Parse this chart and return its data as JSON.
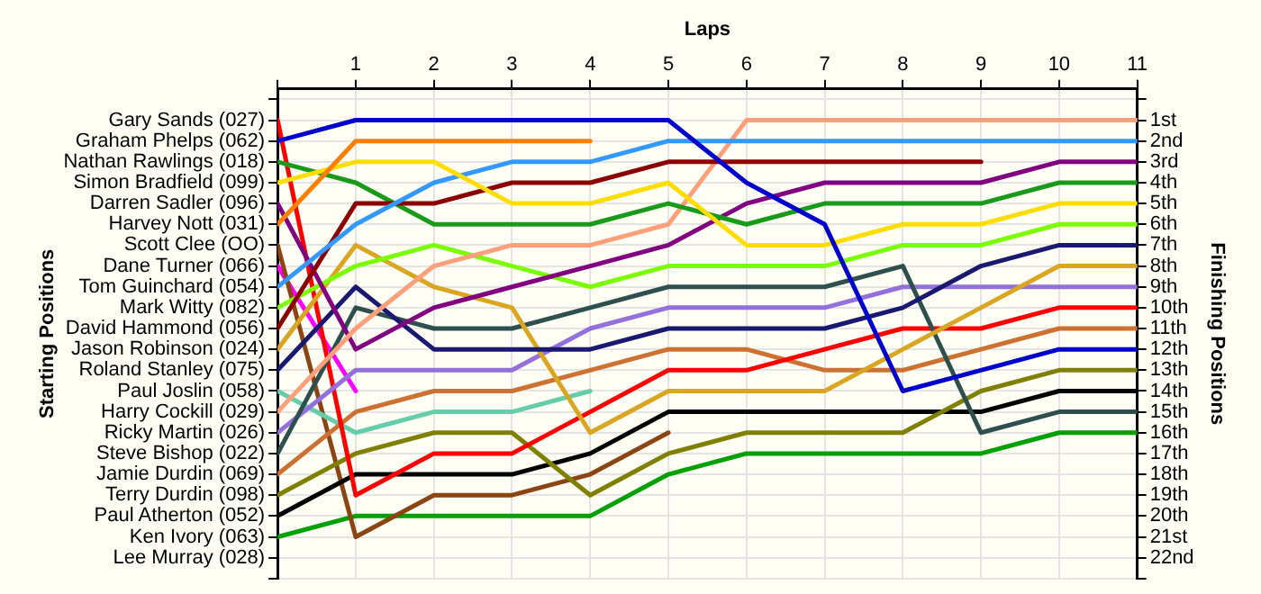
{
  "chart_data": {
    "type": "line",
    "xlabel": "Laps",
    "annotations": [
      "Starting Positions"
    ],
    "y2label": "Finishing Positions",
    "x": [
      0,
      1,
      2,
      3,
      4,
      5,
      6,
      7,
      8,
      9,
      10,
      11
    ],
    "xlim": [
      0,
      11
    ],
    "xticks": [
      {
        "value": 0,
        "label": null
      },
      1,
      2,
      3,
      4,
      5,
      6,
      7,
      8,
      9,
      10,
      11
    ],
    "y_categories": [
      "Gary Sands (027)",
      "Graham Phelps (062)",
      "Nathan Rawlings (018)",
      "Simon Bradfield (099)",
      "Darren Sadler (096)",
      "Harvey Nott (031)",
      "Scott Clee (OO)",
      "Dane Turner (066)",
      "Tom Guinchard (054)",
      "Mark Witty (082)",
      "David Hammond (056)",
      "Jason Robinson (024)",
      "Roland Stanley (075)",
      "Paul Joslin (058)",
      "Harry Cockill (029)",
      "Ricky Martin (026)",
      "Steve Bishop (022)",
      "Jamie Durdin (069)",
      "Terry Durdin (098)",
      "Paul Atherton (052)",
      "Ken Ivory (063)",
      "Lee Murray (028)"
    ],
    "y2lim": [
      23,
      -0.5
    ],
    "y2ticks": [
      {
        "value": 0,
        "label": null
      },
      {
        "value": 1,
        "label": "1st"
      },
      {
        "value": 2,
        "label": "2nd"
      },
      {
        "value": 3,
        "label": "3rd"
      },
      {
        "value": 4,
        "label": "4th"
      },
      {
        "value": 5,
        "label": "5th"
      },
      {
        "value": 6,
        "label": "6th"
      },
      {
        "value": 7,
        "label": "7th"
      },
      {
        "value": 8,
        "label": "8th"
      },
      {
        "value": 9,
        "label": "9th"
      },
      {
        "value": 10,
        "label": "10th"
      },
      {
        "value": 11,
        "label": "11th"
      },
      {
        "value": 12,
        "label": "12th"
      },
      {
        "value": 13,
        "label": "13th"
      },
      {
        "value": 14,
        "label": "14th"
      },
      {
        "value": 15,
        "label": "15th"
      },
      {
        "value": 16,
        "label": "16th"
      },
      {
        "value": 17,
        "label": "17th"
      },
      {
        "value": 18,
        "label": "18th"
      },
      {
        "value": 19,
        "label": "19th"
      },
      {
        "value": 20,
        "label": "20th"
      },
      {
        "value": 21,
        "label": "21st"
      },
      {
        "value": 22,
        "label": "22nd"
      },
      {
        "value": 23,
        "label": null
      }
    ],
    "grid": true,
    "legend": false,
    "marker": "none",
    "line_style": "solid",
    "series": [
      {
        "axis": "y2",
        "color": "#0000cc",
        "values": [
          2,
          1,
          1,
          1,
          1,
          1,
          4,
          6,
          14,
          13,
          12,
          12
        ]
      },
      {
        "axis": "y2",
        "color": "#ff8000",
        "values": [
          6,
          2,
          2,
          2,
          2,
          null,
          null,
          null,
          null,
          null,
          null,
          null
        ]
      },
      {
        "axis": "y2",
        "color": "#ffdd00",
        "values": [
          4,
          3,
          3,
          5,
          5,
          4,
          7,
          7,
          6,
          6,
          5,
          5
        ]
      },
      {
        "axis": "y2",
        "color": "#3399ff",
        "values": [
          9,
          6,
          4,
          3,
          3,
          2,
          2,
          2,
          2,
          2,
          2,
          2
        ]
      },
      {
        "axis": "y2",
        "color": "#8b0000",
        "values": [
          11,
          5,
          5,
          4,
          4,
          3,
          3,
          3,
          3,
          3,
          null,
          null
        ]
      },
      {
        "axis": "y2",
        "color": "#1a9a1a",
        "values": [
          3,
          4,
          6,
          6,
          6,
          5,
          6,
          5,
          5,
          5,
          4,
          4
        ]
      },
      {
        "axis": "y2",
        "color": "#ffa07a",
        "values": [
          15,
          11,
          8,
          7,
          7,
          6,
          1,
          1,
          1,
          1,
          1,
          1
        ]
      },
      {
        "axis": "y2",
        "color": "#800080",
        "values": [
          5,
          12,
          10,
          9,
          8,
          7,
          5,
          4,
          4,
          4,
          3,
          3
        ]
      },
      {
        "axis": "y2",
        "color": "#7cfc00",
        "values": [
          10,
          8,
          7,
          8,
          9,
          8,
          8,
          8,
          7,
          7,
          6,
          6
        ]
      },
      {
        "axis": "y2",
        "color": "#191970",
        "values": [
          13,
          9,
          12,
          12,
          12,
          11,
          11,
          11,
          10,
          8,
          7,
          7
        ]
      },
      {
        "axis": "y2",
        "color": "#daa520",
        "values": [
          12,
          7,
          9,
          10,
          16,
          14,
          14,
          14,
          12,
          10,
          8,
          8
        ]
      },
      {
        "axis": "y2",
        "color": "#2f4f4f",
        "values": [
          17,
          10,
          11,
          11,
          10,
          9,
          9,
          9,
          8,
          16,
          15,
          15
        ]
      },
      {
        "axis": "y2",
        "color": "#9370db",
        "values": [
          16,
          13,
          13,
          13,
          11,
          10,
          10,
          10,
          9,
          9,
          9,
          9
        ]
      },
      {
        "axis": "y2",
        "color": "#ff0000",
        "values": [
          1,
          19,
          17,
          17,
          15,
          13,
          13,
          12,
          11,
          11,
          10,
          10
        ]
      },
      {
        "axis": "y2",
        "color": "#cd7132",
        "values": [
          18,
          15,
          14,
          14,
          13,
          12,
          12,
          13,
          13,
          12,
          11,
          11
        ]
      },
      {
        "axis": "y2",
        "color": "#66cdaa",
        "values": [
          14,
          16,
          15,
          15,
          14,
          null,
          null,
          null,
          null,
          null,
          null,
          null
        ]
      },
      {
        "axis": "y2",
        "color": "#808000",
        "values": [
          19,
          17,
          16,
          16,
          19,
          17,
          16,
          16,
          16,
          14,
          13,
          13
        ]
      },
      {
        "axis": "y2",
        "color": "#000000",
        "values": [
          20,
          18,
          18,
          18,
          17,
          15,
          15,
          15,
          15,
          15,
          14,
          14
        ]
      },
      {
        "axis": "y2",
        "color": "#8b4513",
        "values": [
          7,
          21,
          19,
          19,
          18,
          16,
          null,
          null,
          null,
          null,
          null,
          null
        ]
      },
      {
        "axis": "y2",
        "color": "#00a000",
        "values": [
          21,
          20,
          20,
          20,
          20,
          18,
          17,
          17,
          17,
          17,
          16,
          16
        ]
      },
      {
        "axis": "y2",
        "color": "#ff00ff",
        "values": [
          8,
          14,
          null,
          null,
          null,
          null,
          null,
          null,
          null,
          null,
          null,
          null
        ]
      }
    ]
  }
}
